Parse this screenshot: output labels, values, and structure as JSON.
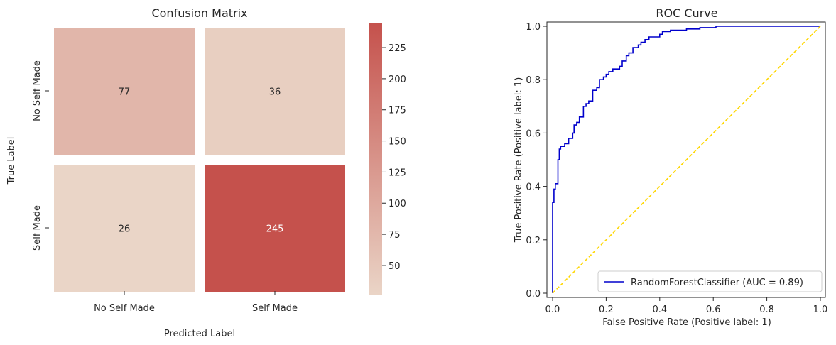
{
  "chart_data": [
    {
      "type": "heatmap",
      "title": "Confusion Matrix",
      "xlabel": "Predicted Label",
      "ylabel": "True Label",
      "x_categories": [
        "No Self Made",
        "Self Made"
      ],
      "y_categories": [
        "No Self Made",
        "Self Made"
      ],
      "values": [
        [
          77,
          36
        ],
        [
          26,
          245
        ]
      ],
      "colorbar": {
        "range": [
          26,
          245
        ],
        "ticks": [
          50,
          75,
          100,
          125,
          150,
          175,
          200,
          225
        ],
        "colors": {
          "low": "#ead5c7",
          "high": "#c5514c"
        }
      },
      "cell_label_colors": {
        "dark": "#262626",
        "light": "#ffffff"
      }
    },
    {
      "type": "line",
      "title": "ROC Curve",
      "xlabel": "False Positive Rate (Positive label: 1)",
      "ylabel": "True Positive Rate (Positive label: 1)",
      "xlim": [
        0,
        1
      ],
      "ylim": [
        0,
        1
      ],
      "xticks": [
        "0.0",
        "0.2",
        "0.4",
        "0.6",
        "0.8",
        "1.0"
      ],
      "yticks": [
        "0.0",
        "0.2",
        "0.4",
        "0.6",
        "0.8",
        "1.0"
      ],
      "legend_position": "bottom-right",
      "series": [
        {
          "name": "RandomForestClassifier (AUC = 0.89)",
          "color": "#0000cc",
          "x": [
            0,
            0,
            0.005,
            0.005,
            0.01,
            0.01,
            0.02,
            0.02,
            0.025,
            0.025,
            0.03,
            0.03,
            0.045,
            0.045,
            0.06,
            0.06,
            0.075,
            0.075,
            0.08,
            0.08,
            0.09,
            0.09,
            0.1,
            0.1,
            0.115,
            0.115,
            0.125,
            0.125,
            0.135,
            0.135,
            0.15,
            0.15,
            0.165,
            0.165,
            0.175,
            0.175,
            0.19,
            0.19,
            0.2,
            0.2,
            0.21,
            0.21,
            0.225,
            0.225,
            0.25,
            0.25,
            0.26,
            0.26,
            0.275,
            0.275,
            0.285,
            0.285,
            0.3,
            0.3,
            0.32,
            0.32,
            0.33,
            0.33,
            0.345,
            0.345,
            0.36,
            0.36,
            0.4,
            0.4,
            0.41,
            0.41,
            0.44,
            0.44,
            0.5,
            0.5,
            0.55,
            0.55,
            0.61,
            0.61,
            1.0
          ],
          "y": [
            0,
            0.34,
            0.34,
            0.39,
            0.39,
            0.41,
            0.41,
            0.5,
            0.5,
            0.54,
            0.54,
            0.55,
            0.55,
            0.56,
            0.56,
            0.58,
            0.58,
            0.6,
            0.6,
            0.63,
            0.63,
            0.64,
            0.64,
            0.66,
            0.66,
            0.7,
            0.7,
            0.71,
            0.71,
            0.72,
            0.72,
            0.76,
            0.76,
            0.77,
            0.77,
            0.8,
            0.8,
            0.81,
            0.81,
            0.82,
            0.82,
            0.83,
            0.83,
            0.84,
            0.84,
            0.85,
            0.85,
            0.87,
            0.87,
            0.89,
            0.89,
            0.9,
            0.9,
            0.92,
            0.92,
            0.93,
            0.93,
            0.94,
            0.94,
            0.95,
            0.95,
            0.96,
            0.96,
            0.97,
            0.97,
            0.98,
            0.98,
            0.985,
            0.985,
            0.99,
            0.99,
            0.995,
            0.995,
            1.0,
            1.0
          ]
        },
        {
          "name": "",
          "color": "#ffd700",
          "dashed": true,
          "x": [
            0,
            1
          ],
          "y": [
            0,
            1
          ]
        }
      ]
    }
  ]
}
